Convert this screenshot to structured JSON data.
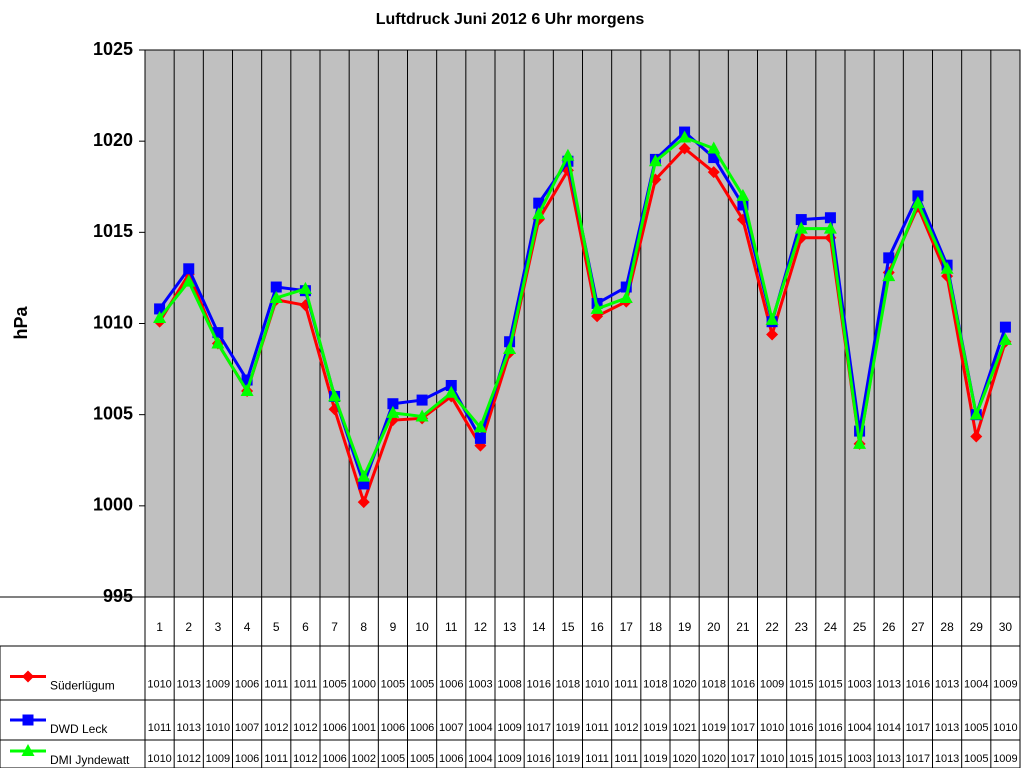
{
  "chart_data": {
    "type": "line",
    "title": "Luftdruck Juni 2012 6 Uhr morgens",
    "ylabel": "hPa",
    "categories": [
      "1",
      "2",
      "3",
      "4",
      "5",
      "6",
      "7",
      "8",
      "9",
      "10",
      "11",
      "12",
      "13",
      "14",
      "15",
      "16",
      "17",
      "18",
      "19",
      "20",
      "21",
      "22",
      "23",
      "24",
      "25",
      "26",
      "27",
      "28",
      "29",
      "30"
    ],
    "ylim": [
      995,
      1025
    ],
    "yticks": [
      995,
      1000,
      1005,
      1010,
      1015,
      1020,
      1025
    ],
    "background": "#c0c0c0",
    "series": [
      {
        "name": "Süderlügum",
        "color": "#ff0000",
        "marker": "diamond",
        "values": [
          1010.1,
          1012.7,
          1008.9,
          1006.3,
          1011.3,
          1011.0,
          1005.3,
          1000.2,
          1004.7,
          1004.8,
          1006.0,
          1003.3,
          1008.4,
          1015.7,
          1018.4,
          1010.4,
          1011.2,
          1017.9,
          1019.6,
          1018.3,
          1015.7,
          1009.4,
          1014.7,
          1014.7,
          1003.4,
          1012.8,
          1016.4,
          1012.6,
          1003.8,
          1009.0
        ],
        "value_labels": [
          "1010",
          "1013",
          "1009",
          "1006",
          "1011",
          "1011",
          "1005",
          "1000",
          "1005",
          "1005",
          "1006",
          "1003",
          "1008",
          "1016",
          "1018",
          "1010",
          "1011",
          "1018",
          "1020",
          "1018",
          "1016",
          "1009",
          "1015",
          "1015",
          "1003",
          "1013",
          "1016",
          "1013",
          "1004",
          "1009"
        ]
      },
      {
        "name": "DWD Leck",
        "color": "#0000ff",
        "marker": "square",
        "values": [
          1010.8,
          1013.0,
          1009.5,
          1006.9,
          1012.0,
          1011.8,
          1006.0,
          1001.2,
          1005.6,
          1005.8,
          1006.6,
          1003.7,
          1009.0,
          1016.6,
          1018.9,
          1011.1,
          1012.0,
          1019.0,
          1020.5,
          1019.1,
          1016.5,
          1010.1,
          1015.7,
          1015.8,
          1004.1,
          1013.6,
          1017.0,
          1013.2,
          1005.0,
          1009.8
        ],
        "value_labels": [
          "1011",
          "1013",
          "1010",
          "1007",
          "1012",
          "1012",
          "1006",
          "1001",
          "1006",
          "1006",
          "1007",
          "1004",
          "1009",
          "1017",
          "1019",
          "1011",
          "1012",
          "1019",
          "1021",
          "1019",
          "1017",
          "1010",
          "1016",
          "1016",
          "1004",
          "1014",
          "1017",
          "1013",
          "1005",
          "1010"
        ]
      },
      {
        "name": "DMI Jyndewatt",
        "color": "#00ff00",
        "marker": "triangle",
        "values": [
          1010.3,
          1012.3,
          1008.9,
          1006.3,
          1011.4,
          1011.9,
          1006.0,
          1001.6,
          1005.1,
          1004.9,
          1006.2,
          1004.3,
          1008.6,
          1016.0,
          1019.2,
          1010.8,
          1011.4,
          1018.9,
          1020.2,
          1019.6,
          1017.0,
          1010.2,
          1015.2,
          1015.2,
          1003.4,
          1012.6,
          1016.6,
          1013.0,
          1005.0,
          1009.1
        ],
        "value_labels": [
          "1010",
          "1012",
          "1009",
          "1006",
          "1011",
          "1012",
          "1006",
          "1002",
          "1005",
          "1005",
          "1006",
          "1004",
          "1009",
          "1016",
          "1019",
          "1011",
          "1011",
          "1019",
          "1020",
          "1020",
          "1017",
          "1010",
          "1015",
          "1015",
          "1003",
          "1013",
          "1017",
          "1013",
          "1005",
          "1009"
        ]
      }
    ]
  }
}
